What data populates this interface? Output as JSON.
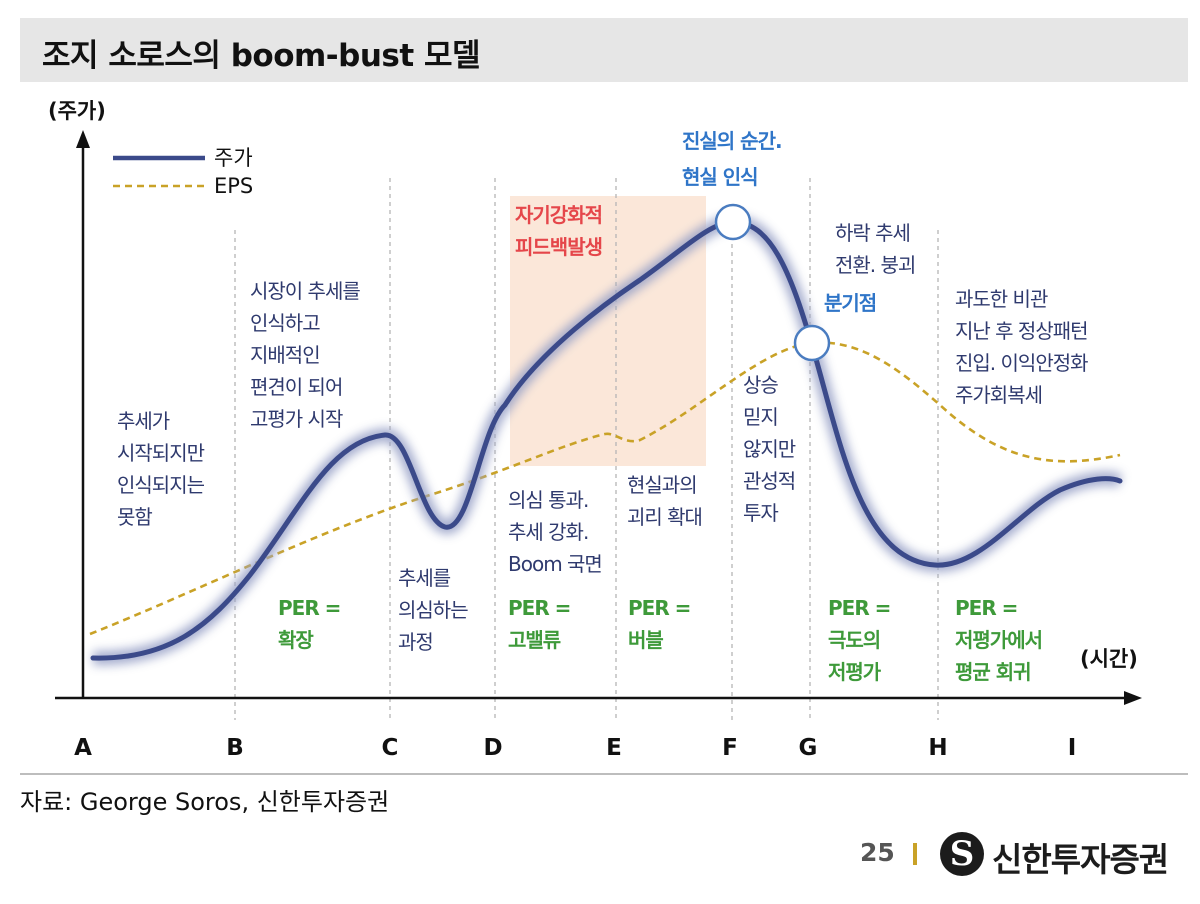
{
  "title": "조지 소로스의 boom-bust 모델",
  "axes": {
    "y_label": "(주가)",
    "x_label": "(시간)",
    "ticks": [
      "A",
      "B",
      "C",
      "D",
      "E",
      "F",
      "G",
      "H",
      "I"
    ]
  },
  "legend": [
    {
      "label": "주가",
      "color": "#3b4a8a",
      "style": "solid"
    },
    {
      "label": "EPS",
      "color": "#c9a227",
      "style": "dashed"
    }
  ],
  "stage_text": [
    [
      "추세가",
      "시작되지만",
      "인식되지는",
      "못함"
    ],
    [
      "시장이 추세를",
      "인식하고",
      "지배적인",
      "편견이 되어",
      "고평가 시작"
    ],
    [
      "추세를",
      "의심하는",
      "과정"
    ],
    [
      "의심 통과.",
      "추세 강화.",
      "Boom 국면"
    ],
    [
      "현실과의",
      "괴리 확대"
    ],
    [
      "상승",
      "믿지",
      "않지만",
      "관성적",
      "투자"
    ],
    [
      "하락 추세",
      "전환. 붕괴"
    ],
    [
      "과도한 비관",
      "지난 후 정상패턴",
      "진입. 이익안정화",
      "주가회복세"
    ]
  ],
  "highlights": {
    "feedback": [
      "자기강화적",
      "피드백발생"
    ],
    "truth": [
      "진실의 순간.",
      "현실 인식"
    ],
    "turning_point": "분기점"
  },
  "per_labels": [
    [
      "PER =",
      "확장"
    ],
    [
      "PER =",
      "고밸류"
    ],
    [
      "PER =",
      "버블"
    ],
    [
      "PER =",
      "극도의",
      "저평가"
    ],
    [
      "PER =",
      "저평가에서",
      "평균 회귀"
    ]
  ],
  "colors": {
    "price_line": "#3b4a8a",
    "eps_line": "#c9a227",
    "feedback_box": "#fbe7d9",
    "text_blue": "#2f3a6e",
    "text_bright_blue": "#2f75c8",
    "text_red": "#e5464a",
    "text_green": "#3e9a3a"
  },
  "source": "자료: George Soros, 신한투자증권",
  "page_number": "25",
  "logo": {
    "symbol": "S",
    "text": "신한투자증권"
  }
}
